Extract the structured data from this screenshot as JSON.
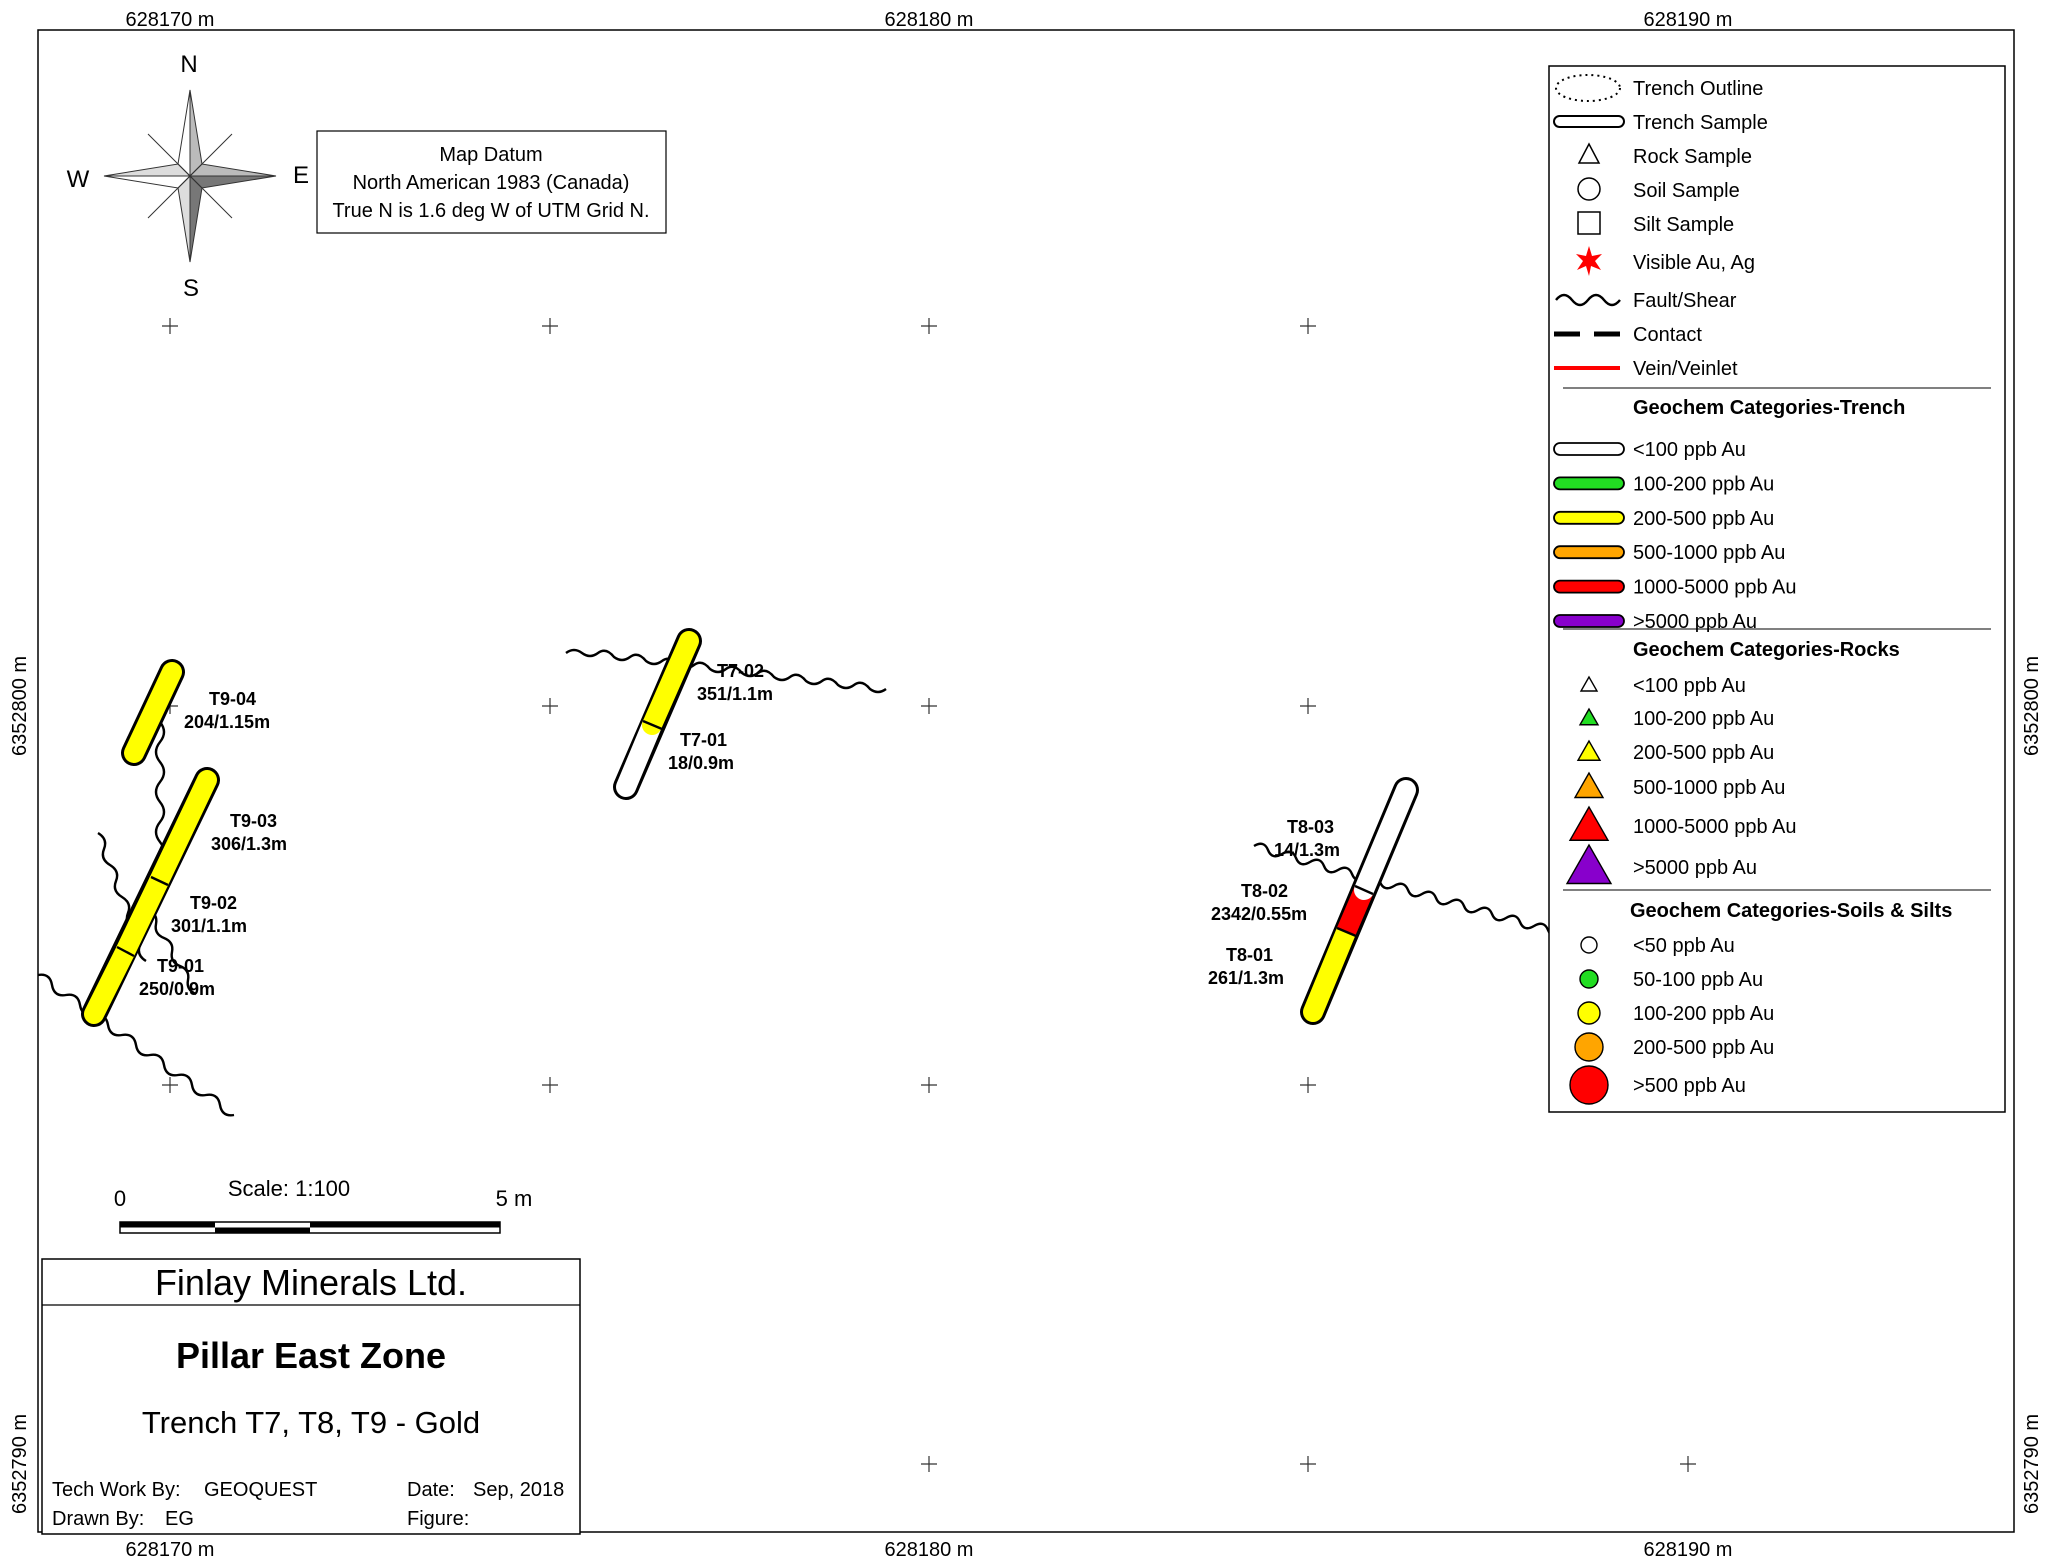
{
  "grid": {
    "x_labels": [
      "628170 m",
      "628180 m",
      "628190 m"
    ],
    "y_labels": [
      "6352800 m",
      "6352790 m"
    ]
  },
  "compass": {
    "n": "N",
    "s": "S",
    "e": "E",
    "w": "W"
  },
  "datum": {
    "line1": "Map Datum",
    "line2": "North American 1983 (Canada)",
    "line3": "True N is 1.6 deg W of UTM Grid N."
  },
  "scale": {
    "label": "Scale: 1:100",
    "start": "0",
    "end": "5 m"
  },
  "title_block": {
    "company": "Finlay Minerals Ltd.",
    "project": "Pillar East Zone",
    "subtitle": "Trench T7, T8, T9 - Gold",
    "tech_label": "Tech Work By:",
    "tech_value": "GEOQUEST",
    "drawn_label": "Drawn By:",
    "drawn_value": "EG",
    "date_label": "Date:",
    "date_value": "Sep, 2018",
    "figure_label": "Figure:"
  },
  "samples": [
    {
      "id": "T9-04",
      "result": "204/1.15m",
      "category": "200-500 ppb Au"
    },
    {
      "id": "T9-03",
      "result": "306/1.3m",
      "category": "200-500 ppb Au"
    },
    {
      "id": "T9-02",
      "result": "301/1.1m",
      "category": "200-500 ppb Au"
    },
    {
      "id": "T9-01",
      "result": "250/0.9m",
      "category": "200-500 ppb Au"
    },
    {
      "id": "T7-02",
      "result": "351/1.1m",
      "category": "200-500 ppb Au"
    },
    {
      "id": "T7-01",
      "result": "18/0.9m",
      "category": "<100 ppb Au"
    },
    {
      "id": "T8-03",
      "result": "14/1.3m",
      "category": "<100 ppb Au"
    },
    {
      "id": "T8-02",
      "result": "2342/0.55m",
      "category": "1000-5000 ppb Au"
    },
    {
      "id": "T8-01",
      "result": "261/1.3m",
      "category": "200-500 ppb Au"
    }
  ],
  "legend": {
    "symbols": [
      "Trench Outline",
      "Trench Sample",
      "Rock Sample",
      "Soil Sample",
      "Silt Sample",
      "Visible Au, Ag",
      "Fault/Shear",
      "Contact",
      "Vein/Veinlet"
    ],
    "trench_title": "Geochem Categories-Trench",
    "trench": [
      {
        "label": "<100 ppb Au",
        "color": "#ffffff"
      },
      {
        "label": "100-200 ppb Au",
        "color": "#22dd22"
      },
      {
        "label": "200-500 ppb Au",
        "color": "#ffff00"
      },
      {
        "label": "500-1000 ppb Au",
        "color": "#ffa500"
      },
      {
        "label": "1000-5000 ppb Au",
        "color": "#ff0000"
      },
      {
        "label": ">5000 ppb Au",
        "color": "#8800cc"
      }
    ],
    "rocks_title": "Geochem Categories-Rocks",
    "rocks": [
      {
        "label": "<100 ppb Au",
        "color": "#ffffff"
      },
      {
        "label": "100-200 ppb Au",
        "color": "#22dd22"
      },
      {
        "label": "200-500 ppb Au",
        "color": "#ffff00"
      },
      {
        "label": "500-1000 ppb Au",
        "color": "#ffa500"
      },
      {
        "label": "1000-5000  ppb Au",
        "color": "#ff0000"
      },
      {
        "label": ">5000  ppb Au",
        "color": "#8800cc"
      }
    ],
    "soils_title": "Geochem Categories-Soils & Silts",
    "soils": [
      {
        "label": "<50 ppb Au",
        "color": "#ffffff"
      },
      {
        "label": "50-100 ppb Au",
        "color": "#22dd22"
      },
      {
        "label": "100-200 ppb Au",
        "color": "#ffff00"
      },
      {
        "label": "200-500 ppb Au",
        "color": "#ffa500"
      },
      {
        "label": ">500 ppb Au",
        "color": "#ff0000"
      }
    ]
  }
}
